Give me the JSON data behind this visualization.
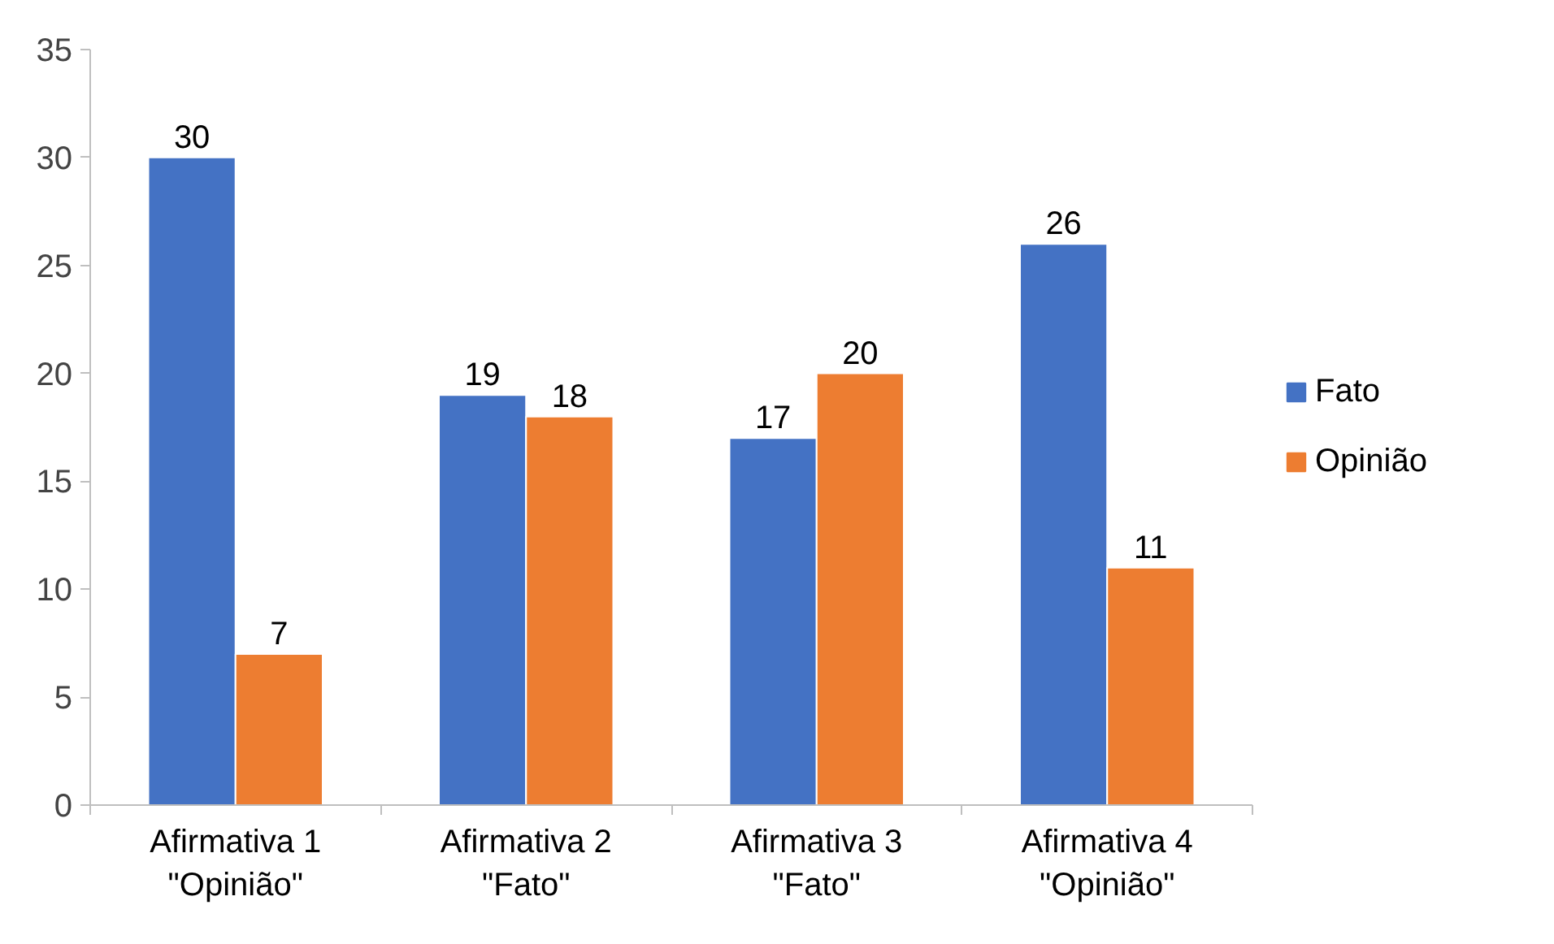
{
  "chart_data": {
    "type": "bar",
    "categories": [
      "Afirmativa 1\n\"Opinião\"",
      "Afirmativa 2\n\"Fato\"",
      "Afirmativa 3\n\"Fato\"",
      "Afirmativa 4\n\"Opinião\""
    ],
    "series": [
      {
        "name": "Fato",
        "color": "#4472c4",
        "values": [
          30,
          19,
          17,
          26
        ]
      },
      {
        "name": "Opinião",
        "color": "#ed7d31",
        "values": [
          7,
          18,
          20,
          11
        ]
      }
    ],
    "ylim": [
      0,
      35
    ],
    "yticks": [
      0,
      5,
      10,
      15,
      20,
      25,
      30,
      35
    ],
    "data_labels": true,
    "grid": false,
    "legend": "right"
  }
}
